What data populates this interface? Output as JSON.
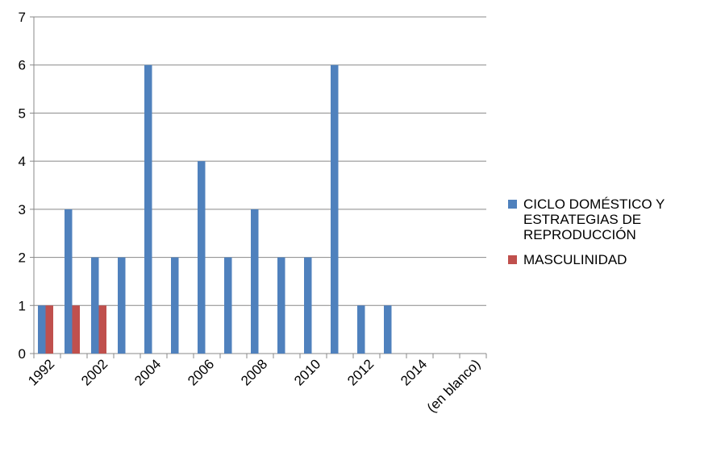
{
  "chart_data": {
    "type": "bar",
    "categories": [
      "1992",
      null,
      "2002",
      null,
      "2004",
      null,
      "2006",
      null,
      "2008",
      null,
      "2010",
      null,
      "2012",
      null,
      "2014",
      null,
      "(en blanco)"
    ],
    "series": [
      {
        "name": "CICLO DOMÉSTICO Y ESTRATEGIAS DE REPRODUCCIÓN",
        "color": "#4f81bd",
        "values": [
          1,
          3,
          2,
          2,
          6,
          2,
          4,
          2,
          3,
          2,
          2,
          6,
          1,
          1,
          null,
          null,
          null
        ]
      },
      {
        "name": "MASCULINIDAD",
        "color": "#c0504d",
        "values": [
          1,
          1,
          1,
          null,
          null,
          null,
          null,
          null,
          null,
          null,
          null,
          null,
          null,
          null,
          null,
          null,
          null
        ]
      }
    ],
    "ylim": [
      0,
      7
    ],
    "yticks": [
      0,
      1,
      2,
      3,
      4,
      5,
      6,
      7
    ],
    "grid": true,
    "legend": "right"
  }
}
